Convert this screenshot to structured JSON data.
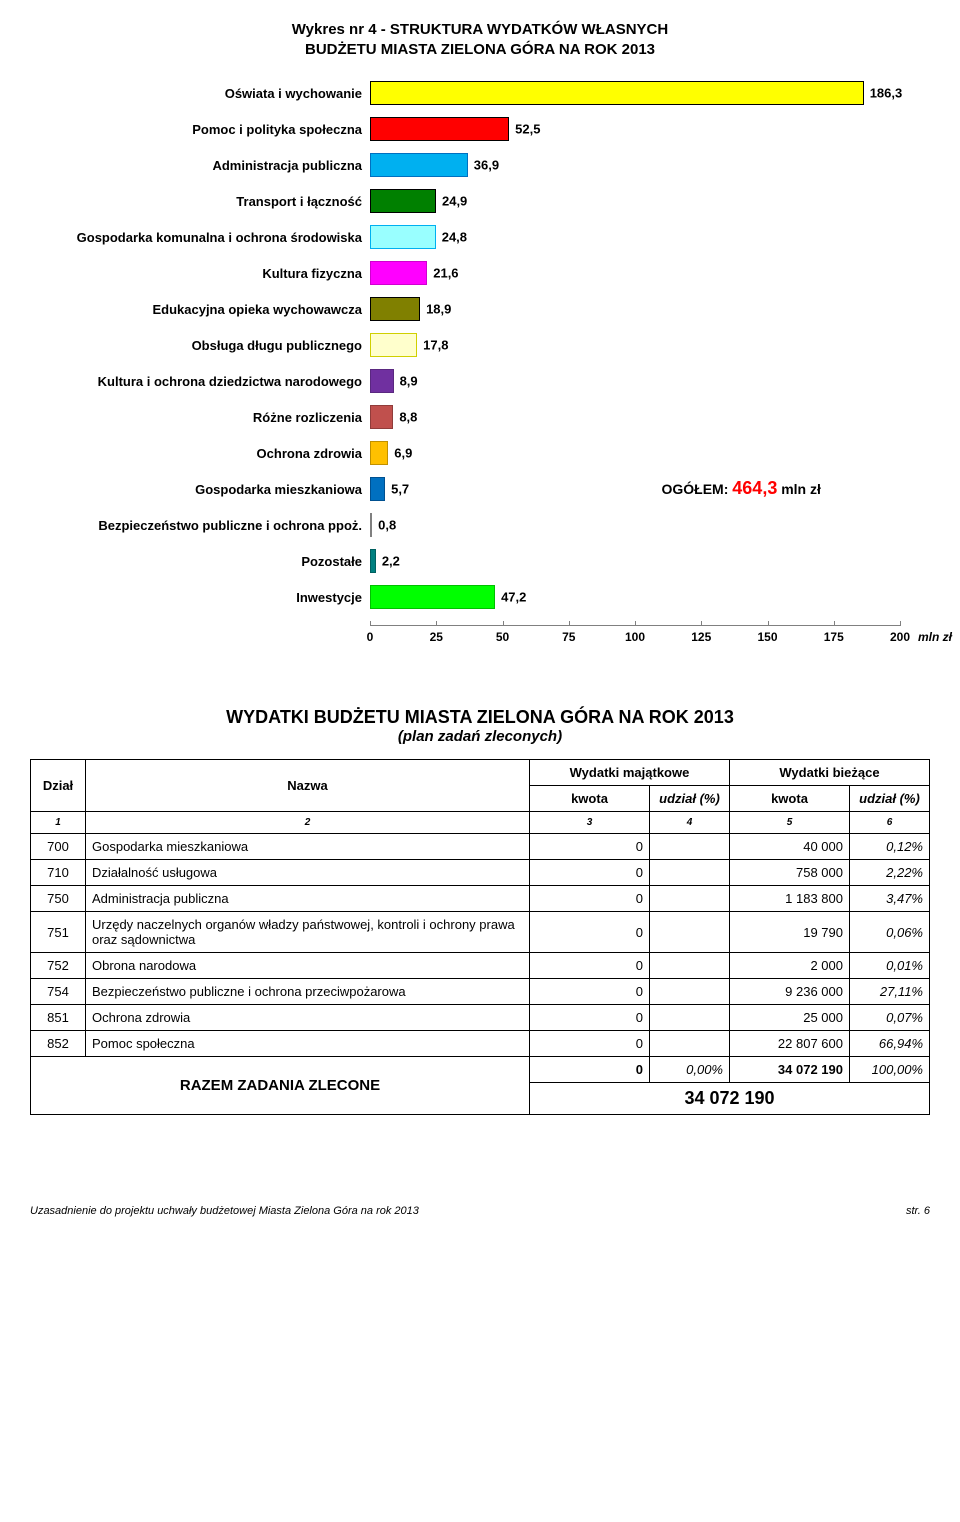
{
  "chart": {
    "title_line1": "Wykres nr 4 - STRUKTURA WYDATKÓW WŁASNYCH",
    "title_line2": "BUDŻETU MIASTA ZIELONA GÓRA NA ROK 2013",
    "xlim": [
      0,
      200
    ],
    "xtick_step": 25,
    "xticks": [
      0,
      25,
      50,
      75,
      100,
      125,
      150,
      175,
      200
    ],
    "x_unit": "mln zł",
    "annotation_prefix": "OGÓŁEM: ",
    "annotation_value": "464,3",
    "annotation_suffix": " mln zł",
    "bars": [
      {
        "label": "Oświata i wychowanie",
        "value": 186.3,
        "text": "186,3",
        "fill": "#ffff00",
        "border": "#000000"
      },
      {
        "label": "Pomoc i polityka społeczna",
        "value": 52.5,
        "text": "52,5",
        "fill": "#ff0000",
        "border": "#000000"
      },
      {
        "label": "Administracja publiczna",
        "value": 36.9,
        "text": "36,9",
        "fill": "#00b0f0",
        "border": "#0070c0"
      },
      {
        "label": "Transport i łączność",
        "value": 24.9,
        "text": "24,9",
        "fill": "#008000",
        "border": "#000000"
      },
      {
        "label": "Gospodarka komunalna i ochrona środowiska",
        "value": 24.8,
        "text": "24,8",
        "fill": "#99ffff",
        "border": "#00b0f0"
      },
      {
        "label": "Kultura fizyczna",
        "value": 21.6,
        "text": "21,6",
        "fill": "#ff00ff",
        "border": "#d000d0"
      },
      {
        "label": "Edukacyjna opieka wychowawcza",
        "value": 18.9,
        "text": "18,9",
        "fill": "#808000",
        "border": "#000000"
      },
      {
        "label": "Obsługa długu publicznego",
        "value": 17.8,
        "text": "17,8",
        "fill": "#ffffcc",
        "border": "#d0d000"
      },
      {
        "label": "Kultura i ochrona dziedzictwa narodowego",
        "value": 8.9,
        "text": "8,9",
        "fill": "#7030a0",
        "border": "#5a2880"
      },
      {
        "label": "Różne rozliczenia",
        "value": 8.8,
        "text": "8,8",
        "fill": "#c0504d",
        "border": "#903c3a"
      },
      {
        "label": "Ochrona zdrowia",
        "value": 6.9,
        "text": "6,9",
        "fill": "#ffc000",
        "border": "#c09000"
      },
      {
        "label": "Gospodarka mieszkaniowa",
        "value": 5.7,
        "text": "5,7",
        "fill": "#0070c0",
        "border": "#005090"
      },
      {
        "label": "Bezpieczeństwo publiczne i ochrona ppoż.",
        "value": 0.8,
        "text": "0,8",
        "fill": "#b0b0b0",
        "border": "#808080"
      },
      {
        "label": "Pozostałe",
        "value": 2.2,
        "text": "2,2",
        "fill": "#008080",
        "border": "#006060"
      },
      {
        "label": "Inwestycje",
        "value": 47.2,
        "text": "47,2",
        "fill": "#00ff00",
        "border": "#00c000"
      }
    ]
  },
  "table": {
    "title_line1": "WYDATKI BUDŻETU MIASTA ZIELONA GÓRA NA ROK 2013",
    "title_line2": "(plan zadań zleconych)",
    "headers": {
      "dzial": "Dział",
      "nazwa": "Nazwa",
      "maj": "Wydatki majątkowe",
      "biez": "Wydatki bieżące",
      "kwota": "kwota",
      "udzial": "udział (%)"
    },
    "colnums": [
      "1",
      "2",
      "3",
      "4",
      "5",
      "6"
    ],
    "rows": [
      {
        "dzial": "700",
        "nazwa": "Gospodarka mieszkaniowa",
        "maj_kwota": "0",
        "maj_udzial": "",
        "biez_kwota": "40 000",
        "biez_udzial": "0,12%"
      },
      {
        "dzial": "710",
        "nazwa": "Działalność usługowa",
        "maj_kwota": "0",
        "maj_udzial": "",
        "biez_kwota": "758 000",
        "biez_udzial": "2,22%"
      },
      {
        "dzial": "750",
        "nazwa": "Administracja publiczna",
        "maj_kwota": "0",
        "maj_udzial": "",
        "biez_kwota": "1 183 800",
        "biez_udzial": "3,47%"
      },
      {
        "dzial": "751",
        "nazwa": "Urzędy naczelnych organów władzy państwowej, kontroli i ochrony prawa oraz sądownictwa",
        "maj_kwota": "0",
        "maj_udzial": "",
        "biez_kwota": "19 790",
        "biez_udzial": "0,06%"
      },
      {
        "dzial": "752",
        "nazwa": "Obrona narodowa",
        "maj_kwota": "0",
        "maj_udzial": "",
        "biez_kwota": "2 000",
        "biez_udzial": "0,01%"
      },
      {
        "dzial": "754",
        "nazwa": "Bezpieczeństwo publiczne i ochrona przeciwpożarowa",
        "maj_kwota": "0",
        "maj_udzial": "",
        "biez_kwota": "9 236 000",
        "biez_udzial": "27,11%"
      },
      {
        "dzial": "851",
        "nazwa": "Ochrona zdrowia",
        "maj_kwota": "0",
        "maj_udzial": "",
        "biez_kwota": "25 000",
        "biez_udzial": "0,07%"
      },
      {
        "dzial": "852",
        "nazwa": "Pomoc społeczna",
        "maj_kwota": "0",
        "maj_udzial": "",
        "biez_kwota": "22 807 600",
        "biez_udzial": "66,94%"
      }
    ],
    "sum_label": "RAZEM ZADANIA ZLECONE",
    "sum_maj_kwota": "0",
    "sum_maj_udzial": "0,00%",
    "sum_biez_kwota": "34 072 190",
    "sum_biez_udzial": "100,00%",
    "grand_total": "34 072 190"
  },
  "footer": {
    "left": "Uzasadnienie do projektu uchwały budżetowej Miasta Zielona Góra na rok 2013",
    "right": "str. 6"
  }
}
